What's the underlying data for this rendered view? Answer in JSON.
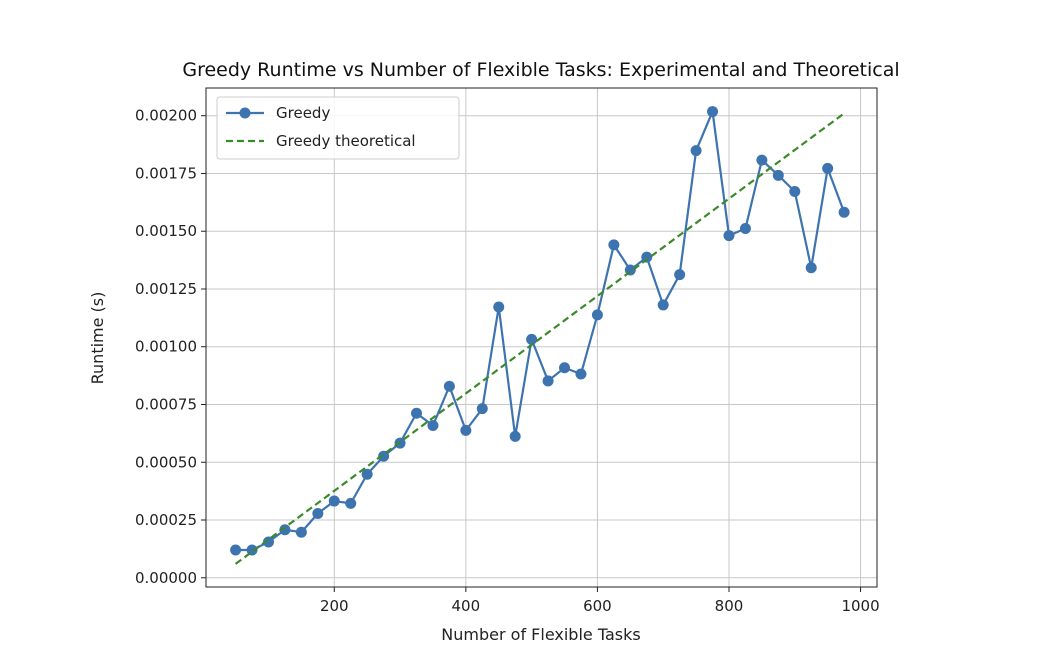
{
  "chart_data": {
    "type": "line",
    "title": "Greedy Runtime vs Number of Flexible Tasks: Experimental and Theoretical",
    "xlabel": "Number of Flexible Tasks",
    "ylabel": "Runtime (s)",
    "xlim": [
      5,
      1025
    ],
    "ylim": [
      -4e-05,
      0.00212
    ],
    "xticks": [
      200,
      400,
      600,
      800,
      1000
    ],
    "xtick_labels": [
      "200",
      "400",
      "600",
      "800",
      "1000"
    ],
    "yticks": [
      0,
      0.00025,
      0.0005,
      0.00075,
      0.001,
      0.00125,
      0.0015,
      0.00175,
      0.002
    ],
    "ytick_labels": [
      "0.00000",
      "0.00025",
      "0.00050",
      "0.00075",
      "0.00100",
      "0.00125",
      "0.00150",
      "0.00175",
      "0.00200"
    ],
    "grid": true,
    "legend_position": "top-left",
    "series": [
      {
        "name": "Greedy",
        "style": "solid-line-with-circle-markers",
        "color": "#3d74b0",
        "x": [
          50,
          75,
          100,
          125,
          150,
          175,
          200,
          225,
          250,
          275,
          300,
          325,
          350,
          375,
          400,
          425,
          450,
          475,
          500,
          525,
          550,
          575,
          600,
          625,
          650,
          675,
          700,
          725,
          750,
          775,
          800,
          825,
          850,
          875,
          900,
          925,
          950,
          975
        ],
        "y": [
          0.00012,
          0.00012,
          0.000155,
          0.000208,
          0.000197,
          0.000278,
          0.000332,
          0.000322,
          0.000448,
          0.000526,
          0.000583,
          0.000712,
          0.000659,
          0.000829,
          0.000638,
          0.000732,
          0.001172,
          0.000612,
          0.001032,
          0.000852,
          0.000909,
          0.000882,
          0.001138,
          0.001441,
          0.001332,
          0.001388,
          0.001181,
          0.001312,
          0.001849,
          0.002018,
          0.001481,
          0.001512,
          0.001808,
          0.001742,
          0.001672,
          0.001342,
          0.001772,
          0.001582
        ]
      },
      {
        "name": "Greedy theoretical",
        "style": "dashed-line",
        "color": "#3a8a2a",
        "x": [
          50,
          975
        ],
        "y": [
          6e-05,
          0.00201
        ]
      }
    ]
  }
}
